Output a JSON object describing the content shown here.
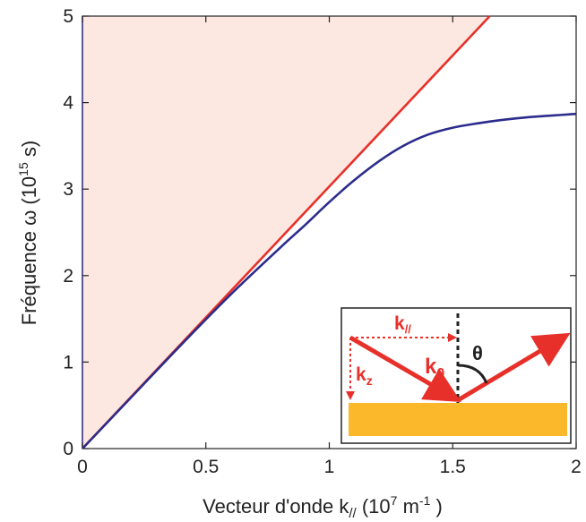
{
  "chart_data": {
    "type": "line",
    "xlabel": "Vecteur d'onde k// (10⁷ m⁻¹)",
    "ylabel": "Fréquence ω (10¹⁵ s)",
    "xlim": [
      0,
      2
    ],
    "ylim": [
      0,
      5
    ],
    "xticks": [
      0,
      0.5,
      1,
      1.5,
      2
    ],
    "xtick_labels": [
      "0",
      "0.5",
      "1",
      "1.5",
      "2"
    ],
    "yticks": [
      0,
      1,
      2,
      3,
      4,
      5
    ],
    "ytick_labels": [
      "0",
      "1",
      "2",
      "3",
      "4",
      "5"
    ],
    "grid": false,
    "light_cone_fill": "#fce8e0",
    "series": [
      {
        "color": "#e8302a",
        "x": [
          0,
          1.65
        ],
        "y": [
          0,
          5.0
        ]
      },
      {
        "color": "#2b2c8c",
        "x": [
          0,
          0.2,
          0.4,
          0.6,
          0.8,
          0.9,
          1.0,
          1.1,
          1.2,
          1.3,
          1.4,
          1.5,
          1.6,
          1.7,
          1.8,
          1.9,
          2.0
        ],
        "y": [
          0,
          0.6,
          1.2,
          1.78,
          2.32,
          2.58,
          2.85,
          3.1,
          3.32,
          3.5,
          3.63,
          3.71,
          3.76,
          3.8,
          3.83,
          3.85,
          3.87
        ]
      }
    ],
    "inset": {
      "labels": {
        "k_parallel": "k",
        "k_parallel_sub": "//",
        "k_z": "k",
        "k_z_sub": "z",
        "k_0": "k",
        "k_0_sub": "0",
        "theta": "θ"
      },
      "arrow_color": "#e8302a",
      "metal_color": "#fbb82a",
      "text_color_k": "#e8302a",
      "text_color_theta": "#222222"
    }
  }
}
